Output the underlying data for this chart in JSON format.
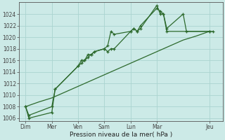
{
  "bg_color": "#cceae7",
  "grid_color": "#aad4d0",
  "line_color": "#2d6a2d",
  "marker_color": "#2d6a2d",
  "xlabel": "Pression niveau de la mer( hPa )",
  "ylim": [
    1005.5,
    1026.0
  ],
  "yticks": [
    1006,
    1008,
    1010,
    1012,
    1014,
    1016,
    1018,
    1020,
    1022,
    1024
  ],
  "xtick_positions": [
    0,
    8,
    16,
    24,
    32,
    40,
    56
  ],
  "xtick_labels": [
    "Dim",
    "Mer",
    "Ven",
    "Sam",
    "Lun",
    "Mar",
    "Jeu"
  ],
  "s1_x": [
    0,
    1,
    8,
    9,
    16,
    17,
    18,
    19,
    20,
    21,
    24,
    25,
    26,
    27,
    32,
    33,
    34,
    35,
    40,
    41,
    42,
    43,
    56,
    57
  ],
  "s1_y": [
    1008,
    1006,
    1007,
    1011,
    1015,
    1016,
    1016,
    1017,
    1017,
    1017.5,
    1018,
    1017.5,
    1018,
    1018,
    1021,
    1021.5,
    1021,
    1021.5,
    1025.5,
    1024,
    1024,
    1021,
    1021,
    1021
  ],
  "s2_x": [
    0,
    1,
    8,
    9,
    16,
    17,
    18,
    19,
    20,
    21,
    24,
    25,
    26,
    27,
    32,
    33,
    34,
    35,
    40,
    41,
    42,
    43,
    48,
    49,
    56
  ],
  "s2_y": [
    1008,
    1006.5,
    1008,
    1011,
    1015,
    1015.5,
    1016,
    1016.5,
    1017,
    1017.5,
    1018,
    1018.5,
    1021,
    1020.5,
    1021,
    1021.5,
    1021,
    1022,
    1025,
    1024.5,
    1024,
    1021.5,
    1024,
    1021,
    1021
  ],
  "s3_x": [
    0,
    4,
    8,
    12,
    16,
    20,
    24,
    28,
    32,
    36,
    40,
    44,
    48,
    52,
    56
  ],
  "s3_y": [
    1008,
    1008.8,
    1009.5,
    1010.5,
    1011.5,
    1012.5,
    1013.5,
    1014.5,
    1015.5,
    1016.5,
    1017.5,
    1018.5,
    1019.5,
    1020.2,
    1021.0
  ]
}
